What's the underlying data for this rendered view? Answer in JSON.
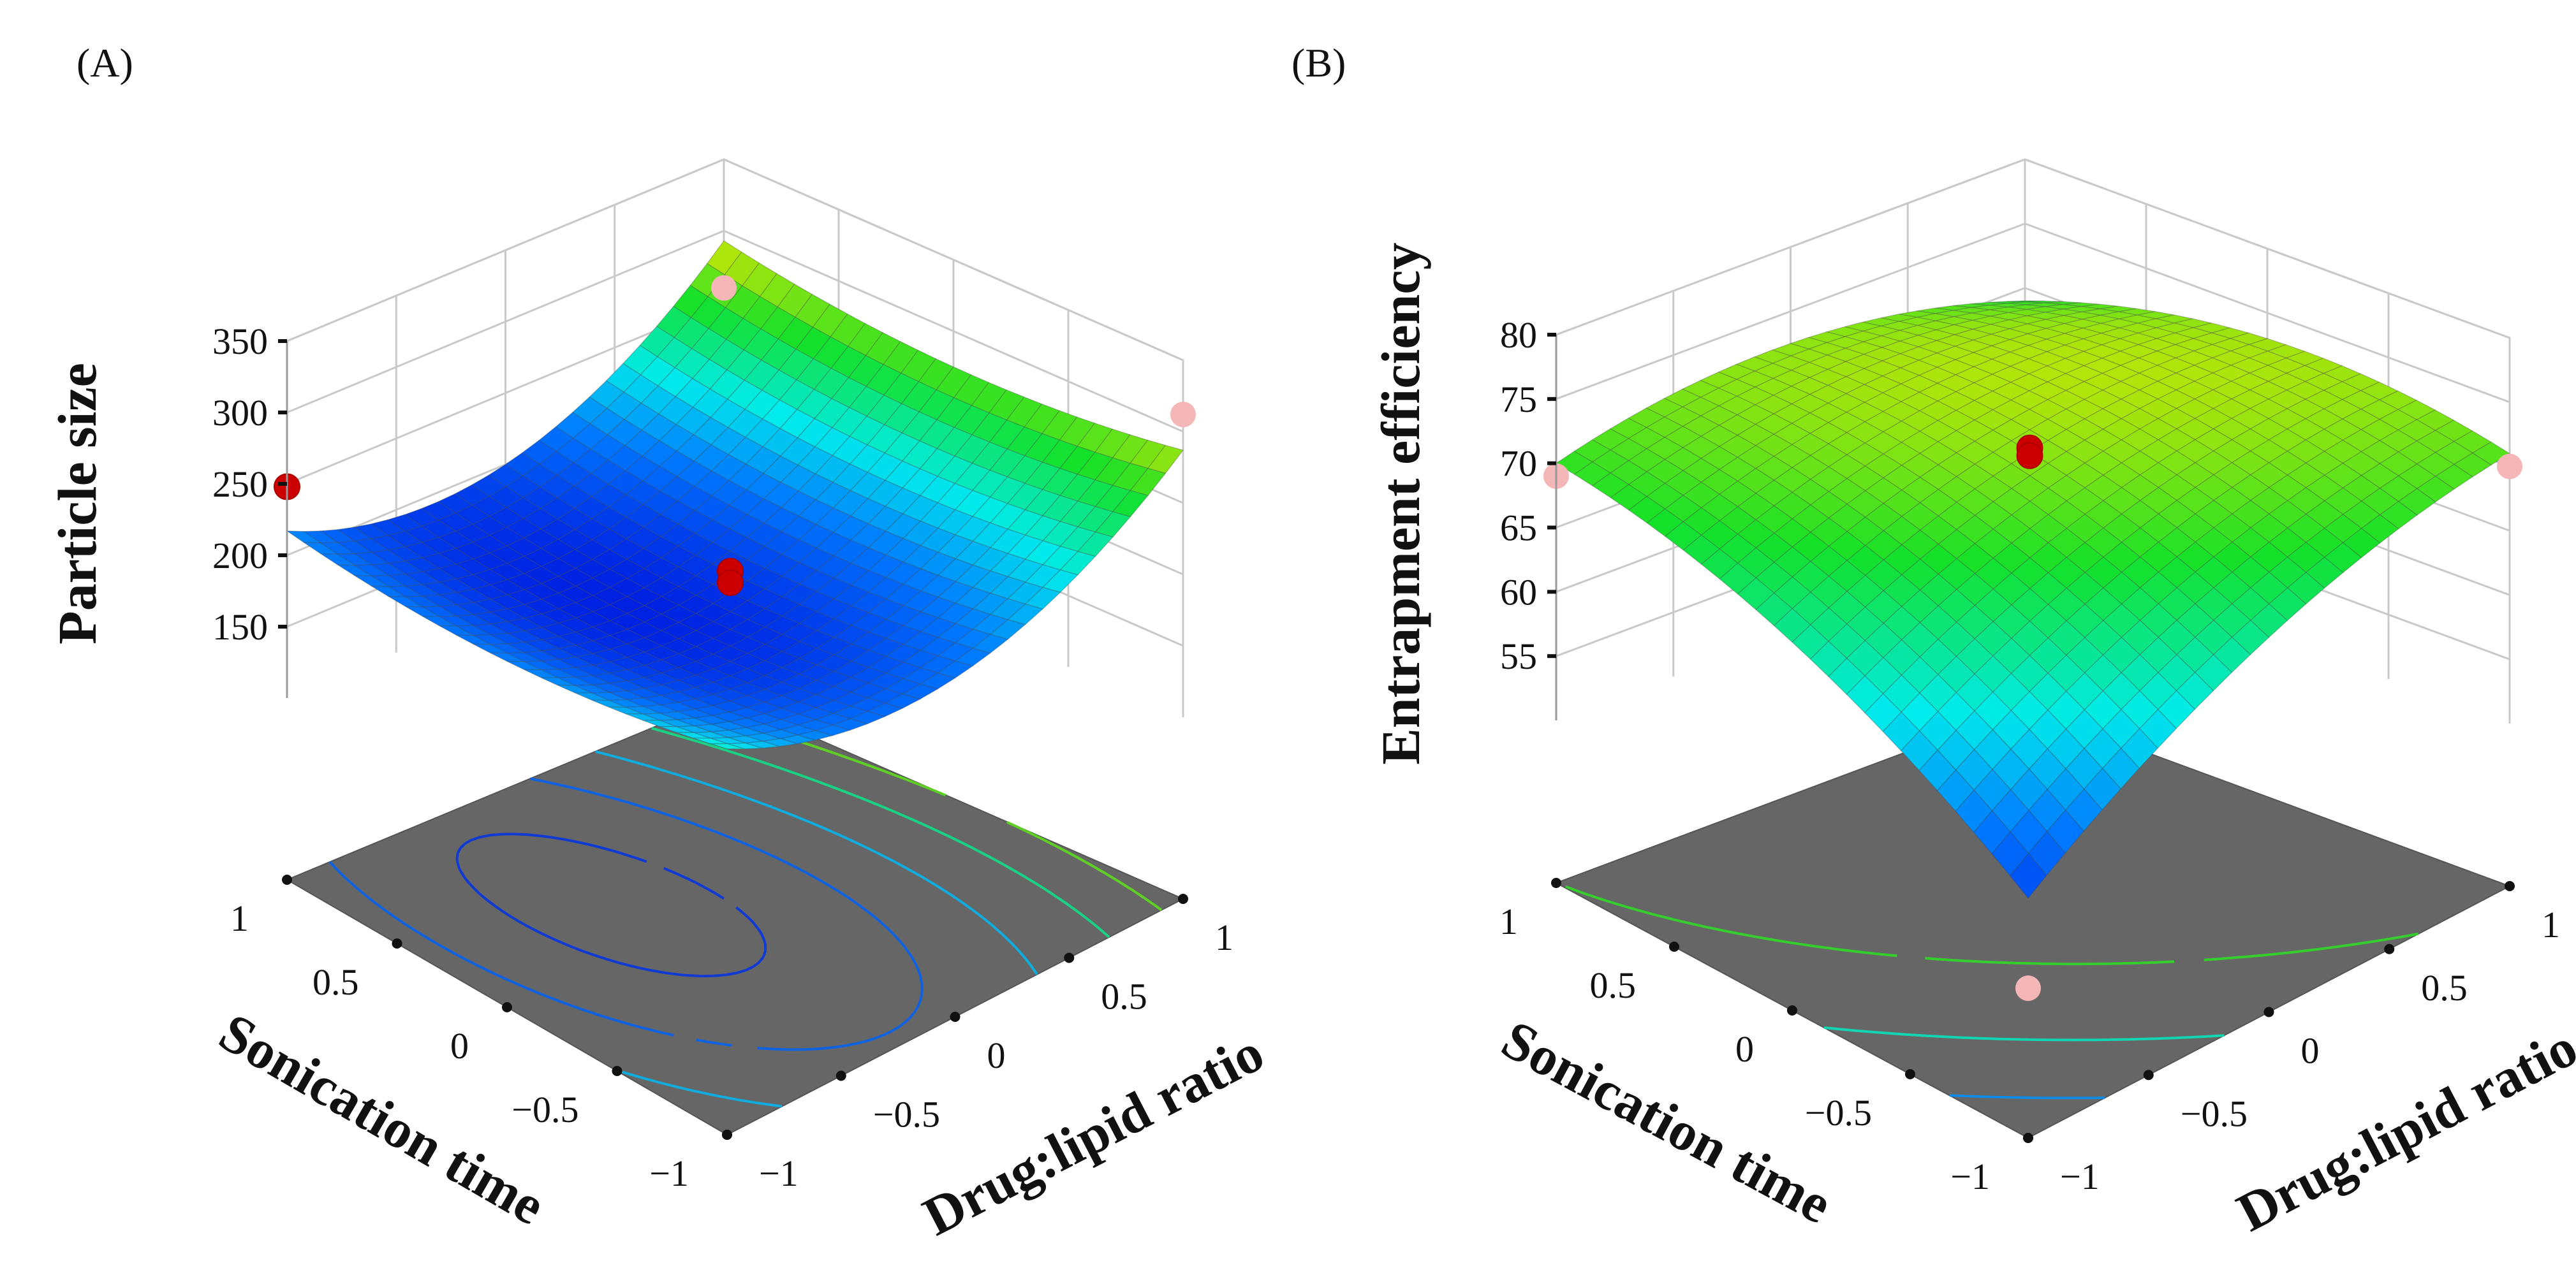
{
  "chart_data": [
    {
      "type": "surface3d",
      "panel_label": "(A)",
      "zlabel": "Particle size",
      "xlabel": "Sonication time",
      "ylabel": "Drug:lipid ratio",
      "xticks": [
        "1",
        "0.5",
        "0",
        "−0.5",
        "−1"
      ],
      "yticks": [
        "−1",
        "−0.5",
        "0",
        "0.5",
        "1"
      ],
      "zticks": [
        "350",
        "300",
        "250",
        "200",
        "150"
      ],
      "zlim": [
        100,
        350
      ],
      "grid": true,
      "surface_model": {
        "intercept": 190,
        "x": -5,
        "y": 30,
        "xy": 8,
        "x2": 15,
        "y2": 55
      },
      "colormap_range": [
        175,
        320
      ],
      "design_points": [
        {
          "x": 0,
          "y": 0,
          "z": 205,
          "color": "#cc0000"
        },
        {
          "x": 0,
          "y": 0,
          "z": 197,
          "color": "#cc0000"
        },
        {
          "x": 1,
          "y": -1,
          "z": 248,
          "color": "#cc0000"
        },
        {
          "x": 1,
          "y": 1,
          "z": 260,
          "color": "#f4b6b6"
        },
        {
          "x": -1,
          "y": 1,
          "z": 312,
          "color": "#f4b6b6"
        }
      ],
      "contour_levels": [
        190,
        205,
        225,
        250,
        275,
        300
      ]
    },
    {
      "type": "surface3d",
      "panel_label": "(B)",
      "zlabel": "Entrapment efficiency",
      "xlabel": "Sonication time",
      "ylabel": "Drug:lipid ratio",
      "xticks": [
        "1",
        "0.5",
        "0",
        "−0.5",
        "−1"
      ],
      "yticks": [
        "−1",
        "−0.5",
        "0",
        "0.5",
        "1"
      ],
      "zticks": [
        "80",
        "75",
        "70",
        "65",
        "60",
        "55"
      ],
      "zlim": [
        50,
        80
      ],
      "grid": true,
      "surface_model": {
        "intercept": 72.5,
        "x": 3,
        "y": 3.5,
        "xy": -4,
        "x2": -3,
        "y2": -3
      },
      "colormap_range": [
        52,
        80
      ],
      "design_points": [
        {
          "x": 0,
          "y": 0,
          "z": 72.8,
          "color": "#cc0000"
        },
        {
          "x": 0,
          "y": 0,
          "z": 72.2,
          "color": "#cc0000"
        },
        {
          "x": 1,
          "y": -1,
          "z": 69,
          "color": "#f4b6b6"
        },
        {
          "x": -1,
          "y": 1,
          "z": 70,
          "color": "#f4b6b6"
        },
        {
          "x": -1,
          "y": -1,
          "z": 49,
          "color": "#f4b6b6"
        }
      ],
      "contour_levels": [
        55,
        60,
        65,
        70
      ]
    }
  ]
}
